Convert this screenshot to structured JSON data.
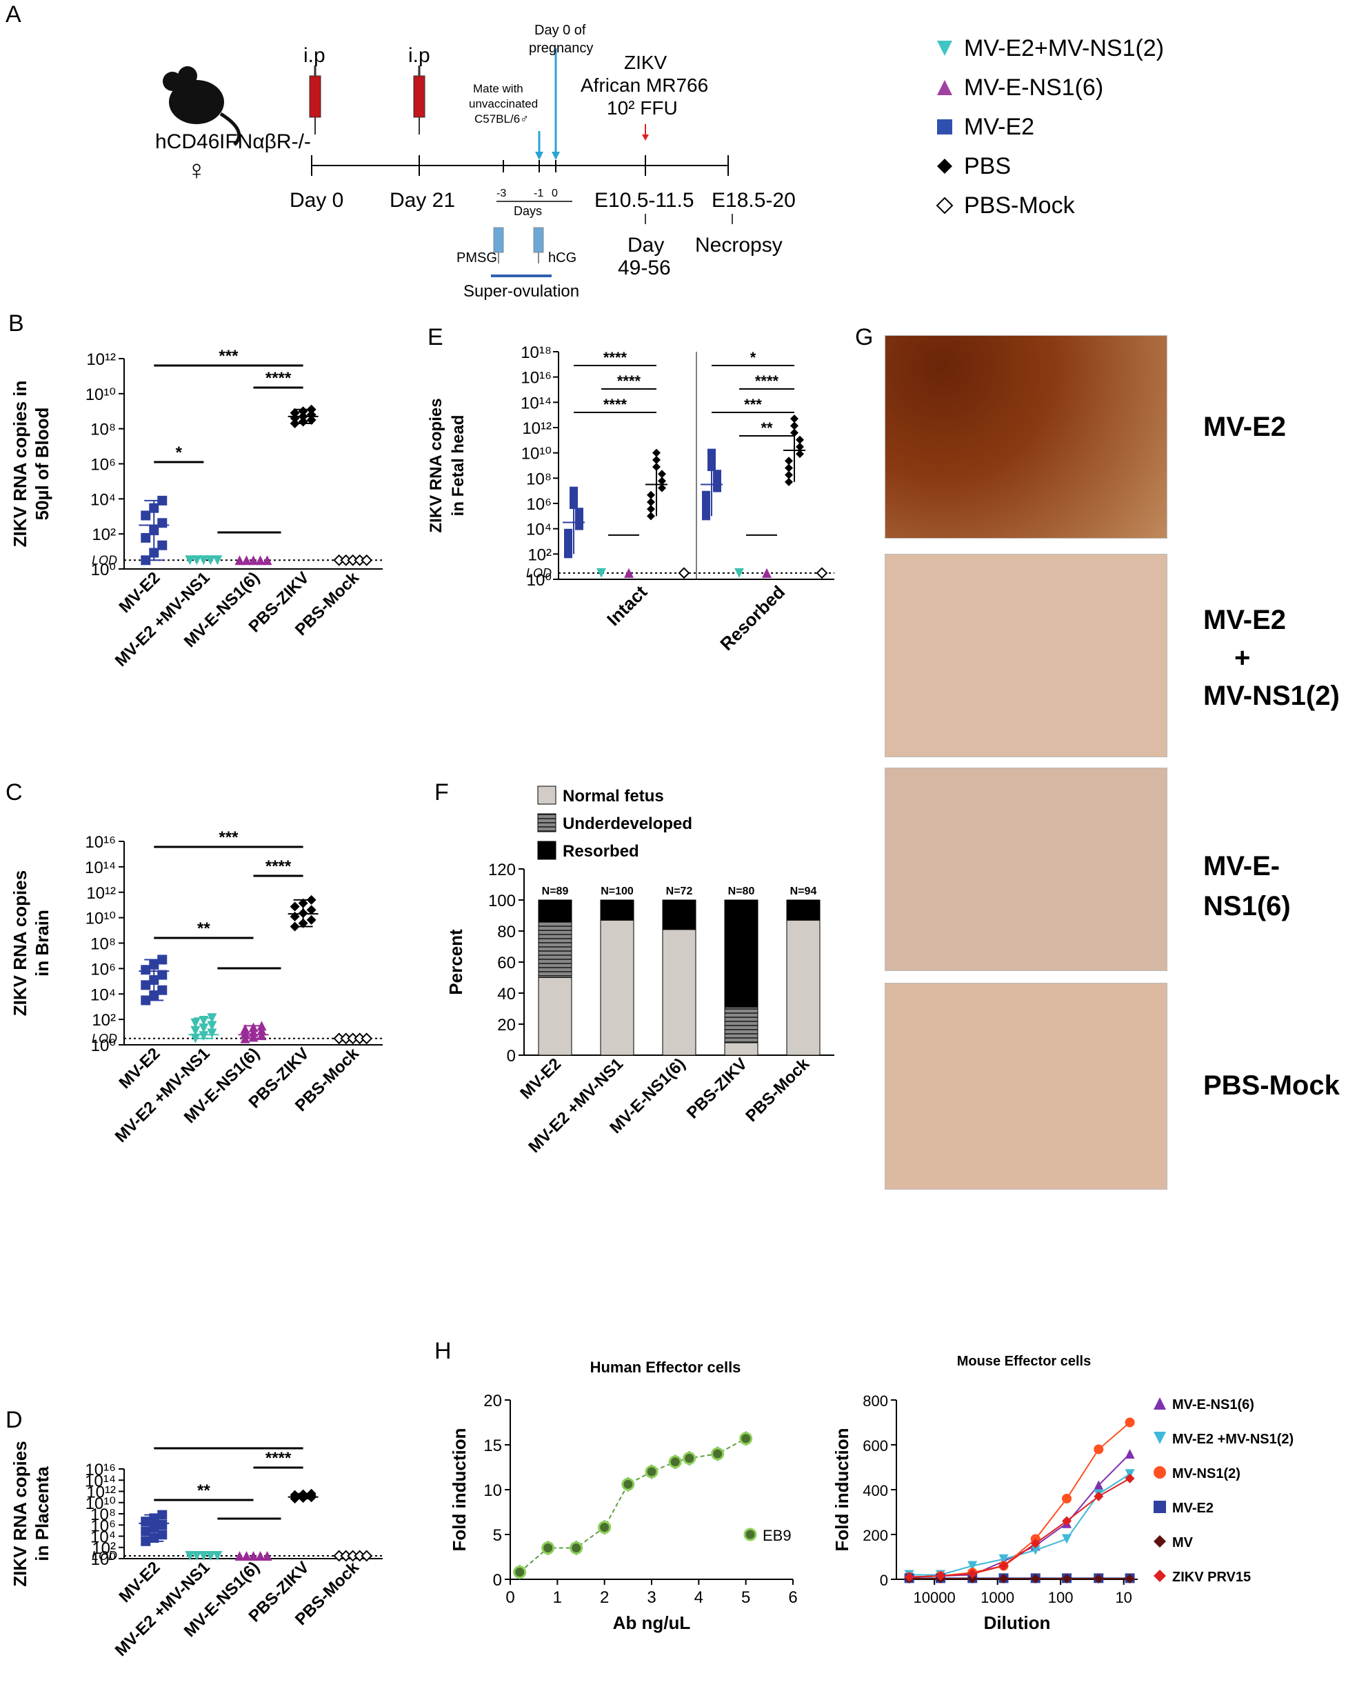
{
  "panels": {
    "A": "A",
    "B": "B",
    "C": "C",
    "D": "D",
    "E": "E",
    "F": "F",
    "G": "G",
    "H": "H"
  },
  "timeline": {
    "mouse_label_1": "hCD46",
    "mouse_label_2": "IFNαβR-/-",
    "female_symbol": "♀",
    "ip_1": "i.p",
    "ip_2": "i.p",
    "day0": "Day 0",
    "day21": "Day  21",
    "mate_1": "Mate with",
    "mate_2": "unvaccinated",
    "mate_3": "C57BL/6♂",
    "preg_1": "Day 0 of",
    "preg_2": "pregnancy",
    "zikv_1": "ZIKV",
    "zikv_2": "African MR766",
    "zikv_3": "10² FFU",
    "tick_m3": "-3",
    "tick_m1": "-1",
    "tick_0": "0",
    "days": "Days",
    "e10": "E10.5-11.5",
    "e18": "E18.5-20",
    "day49_1": "Day",
    "day49_2": "49-56",
    "necropsy": "Necropsy",
    "pmsg": "PMSG",
    "hcg": "hCG",
    "superov": "Super-ovulation"
  },
  "legend_top": [
    {
      "label": "MV-E2+MV-NS1(2)",
      "color": "#40c4c4",
      "marker": "triangle-down-icon"
    },
    {
      "label": "MV-E-NS1(6)",
      "color": "#a040a0",
      "marker": "triangle-up-icon"
    },
    {
      "label": "MV-E2",
      "color": "#3050b0",
      "marker": "square-icon"
    },
    {
      "label": "PBS",
      "color": "#000000",
      "marker": "diamond-icon"
    },
    {
      "label": "PBS-Mock",
      "color": "#000000",
      "marker": "open-diamond-icon"
    }
  ],
  "common_groups": [
    "MV-E2",
    "MV-E2 +MV-NS1",
    "MV-E-NS1(6)",
    "PBS-ZIKV",
    "PBS-Mock"
  ],
  "lod": "LOD",
  "chart_data": [
    {
      "id": "B",
      "type": "scatter",
      "ylabel": "ZIKV RNA copies in 50µl of Blood",
      "ylabel_1": "ZIKV RNA copies in",
      "ylabel_2": "50µl of Blood",
      "yscale": "log",
      "ylim": [
        1,
        1000000000000.0
      ],
      "yticks": [
        "10⁰",
        "10²",
        "10⁴",
        "10⁶",
        "10⁸",
        "10¹⁰",
        "10¹²"
      ],
      "categories": [
        "MV-E2",
        "MV-E2 +MV-NS1",
        "MV-E-NS1(6)",
        "PBS-ZIKV",
        "PBS-Mock"
      ],
      "median_exp": [
        2.5,
        0.5,
        0.5,
        8.7,
        0.5
      ],
      "spread_exp": [
        [
          0.5,
          3.9
        ],
        null,
        null,
        [
          8.3,
          9.1
        ],
        null
      ],
      "significance": [
        {
          "from": 0,
          "to": 3,
          "label": "***"
        },
        {
          "from": 2,
          "to": 3,
          "label": "****"
        },
        {
          "from": 0,
          "to": 1,
          "label": "*"
        }
      ]
    },
    {
      "id": "C",
      "type": "scatter",
      "ylabel": "ZIKV RNA copies in Brain",
      "ylabel_1": "ZIKV RNA copies",
      "ylabel_2": "in Brain",
      "yscale": "log",
      "ylim": [
        1,
        1e+16
      ],
      "yticks": [
        "10⁰",
        "10²",
        "10⁴",
        "10⁶",
        "10⁸",
        "10¹⁰",
        "10¹²",
        "10¹⁴",
        "10¹⁶"
      ],
      "categories": [
        "MV-E2",
        "MV-E2 +MV-NS1",
        "MV-E-NS1(6)",
        "PBS-ZIKV",
        "PBS-Mock"
      ],
      "median_exp": [
        5.8,
        0.8,
        0.8,
        10.3,
        0.5
      ],
      "spread_exp": [
        [
          3.5,
          6.7
        ],
        [
          0.5,
          2.1
        ],
        [
          0.5,
          1.5
        ],
        [
          9.3,
          11.4
        ],
        null
      ],
      "significance": [
        {
          "from": 0,
          "to": 3,
          "label": "***"
        },
        {
          "from": 2,
          "to": 3,
          "label": "****"
        },
        {
          "from": 0,
          "to": 2,
          "label": "**"
        }
      ]
    },
    {
      "id": "D",
      "type": "scatter",
      "ylabel": "ZIKV RNA copies in Placenta",
      "ylabel_1": "ZIKV RNA copies",
      "ylabel_2": "in Placenta",
      "yscale": "log",
      "ylim": [
        1,
        1e+16
      ],
      "yticks": [
        "10⁰",
        "10²",
        "10⁴",
        "10⁶",
        "10⁸",
        "10¹⁰",
        "10¹²",
        "10¹⁴",
        "10¹⁶"
      ],
      "categories": [
        "MV-E2",
        "MV-E2 +MV-NS1",
        "MV-E-NS1(6)",
        "PBS-ZIKV",
        "PBS-Mock"
      ],
      "median_exp": [
        6.3,
        0.5,
        0.5,
        11.0,
        0.5
      ],
      "spread_exp": [
        [
          3.1,
          7.8
        ],
        null,
        null,
        [
          10.7,
          11.6
        ],
        null
      ],
      "significance": [
        {
          "from": 0,
          "to": 3,
          "label": "***"
        },
        {
          "from": 2,
          "to": 3,
          "label": "****"
        },
        {
          "from": 0,
          "to": 2,
          "label": "**"
        }
      ]
    },
    {
      "id": "E",
      "type": "scatter",
      "ylabel": "ZIKV RNA copies in Fetal head",
      "ylabel_1": "ZIKV RNA copies",
      "ylabel_2": "in Fetal head",
      "yscale": "log",
      "ylim": [
        1,
        1e+18
      ],
      "yticks": [
        "10⁰",
        "10²",
        "10⁴",
        "10⁶",
        "10⁸",
        "10¹⁰",
        "10¹²",
        "10¹⁴",
        "10¹⁶",
        "10¹⁸"
      ],
      "groups": [
        "Intact",
        "Resorbed"
      ],
      "median_exp": {
        "Intact": [
          4.5,
          0.5,
          0.5,
          7.5,
          0.5
        ],
        "Resorbed": [
          7.5,
          0.5,
          0.5,
          10.2,
          0.5
        ]
      },
      "significance": {
        "Intact": [
          "****",
          "****",
          "****"
        ],
        "Resorbed": [
          "*",
          "****",
          "***",
          "**"
        ]
      }
    },
    {
      "id": "F",
      "type": "bar",
      "ylabel": "Percent",
      "ylim": [
        0,
        120
      ],
      "yticks": [
        "0",
        "20",
        "40",
        "60",
        "80",
        "100",
        "120"
      ],
      "legend": [
        "Normal fetus",
        "Underdeveloped",
        "Resorbed"
      ],
      "categories": [
        "MV-E2",
        "MV-E2 +MV-NS1",
        "MV-E-NS1(6)",
        "PBS-ZIKV",
        "PBS-Mock"
      ],
      "n_labels": [
        "N=89",
        "N=100",
        "N=72",
        "N=80",
        "N=94"
      ],
      "series": [
        {
          "name": "Normal fetus",
          "values": [
            50,
            87,
            81,
            8,
            87
          ]
        },
        {
          "name": "Underdeveloped",
          "values": [
            36,
            0,
            0,
            23,
            0
          ]
        },
        {
          "name": "Resorbed",
          "values": [
            14,
            13,
            19,
            69,
            13
          ]
        }
      ]
    },
    {
      "id": "H1",
      "type": "line",
      "title": "Human Effector cells",
      "xlabel": "Ab ng/uL",
      "ylabel": "Fold induction",
      "xlim": [
        0,
        6
      ],
      "ylim": [
        0,
        20
      ],
      "xticks": [
        "0",
        "1",
        "2",
        "3",
        "4",
        "5",
        "6"
      ],
      "yticks": [
        "0",
        "5",
        "10",
        "15",
        "20"
      ],
      "legend": "EB9",
      "x": [
        0.2,
        0.8,
        1.4,
        2.0,
        2.5,
        3.0,
        3.5,
        3.8,
        4.4,
        5.0
      ],
      "y": [
        0.8,
        3.5,
        3.5,
        5.8,
        10.6,
        12.0,
        13.1,
        13.5,
        14.0,
        15.7
      ]
    },
    {
      "id": "H2",
      "type": "line",
      "title": "Mouse Effector cells",
      "xlabel": "Dilution",
      "ylabel": "Fold induction",
      "xscale": "log-reversed",
      "ylim": [
        0,
        800
      ],
      "xticks": [
        "10000",
        "1000",
        "100",
        "10"
      ],
      "yticks": [
        "0",
        "200",
        "400",
        "600",
        "800"
      ],
      "x": [
        25000,
        8000,
        2500,
        800,
        250,
        80,
        25,
        8
      ],
      "series": [
        {
          "name": "MV-E-NS1(6)",
          "color": "#8030b0",
          "values": [
            10,
            15,
            20,
            80,
            150,
            250,
            420,
            560
          ]
        },
        {
          "name": "MV-E2 +MV-NS1(2)",
          "color": "#40b8d8",
          "values": [
            20,
            20,
            60,
            90,
            130,
            180,
            380,
            470
          ]
        },
        {
          "name": "MV-NS1(2)",
          "color": "#ff5020",
          "values": [
            10,
            15,
            30,
            60,
            180,
            360,
            580,
            700
          ]
        },
        {
          "name": "MV-E2",
          "color": "#3040a0",
          "values": [
            5,
            5,
            5,
            5,
            5,
            5,
            5,
            5
          ]
        },
        {
          "name": "MV",
          "color": "#601010",
          "values": [
            3,
            3,
            3,
            3,
            3,
            3,
            3,
            3
          ]
        },
        {
          "name": "ZIKV PRV15",
          "color": "#e02020",
          "values": [
            10,
            15,
            25,
            60,
            160,
            260,
            370,
            450
          ]
        }
      ]
    }
  ],
  "histology": [
    {
      "label": "MV-E2",
      "lines": [
        "MV-E2"
      ]
    },
    {
      "label": "MV-E2 + MV-NS1(2)",
      "lines": [
        "MV-E2",
        "+",
        "MV-NS1(2)"
      ]
    },
    {
      "label": "MV-E-NS1(6)",
      "lines": [
        "MV-E-NS1(6)"
      ]
    },
    {
      "label": "PBS-Mock",
      "lines": [
        "PBS-Mock"
      ]
    }
  ]
}
